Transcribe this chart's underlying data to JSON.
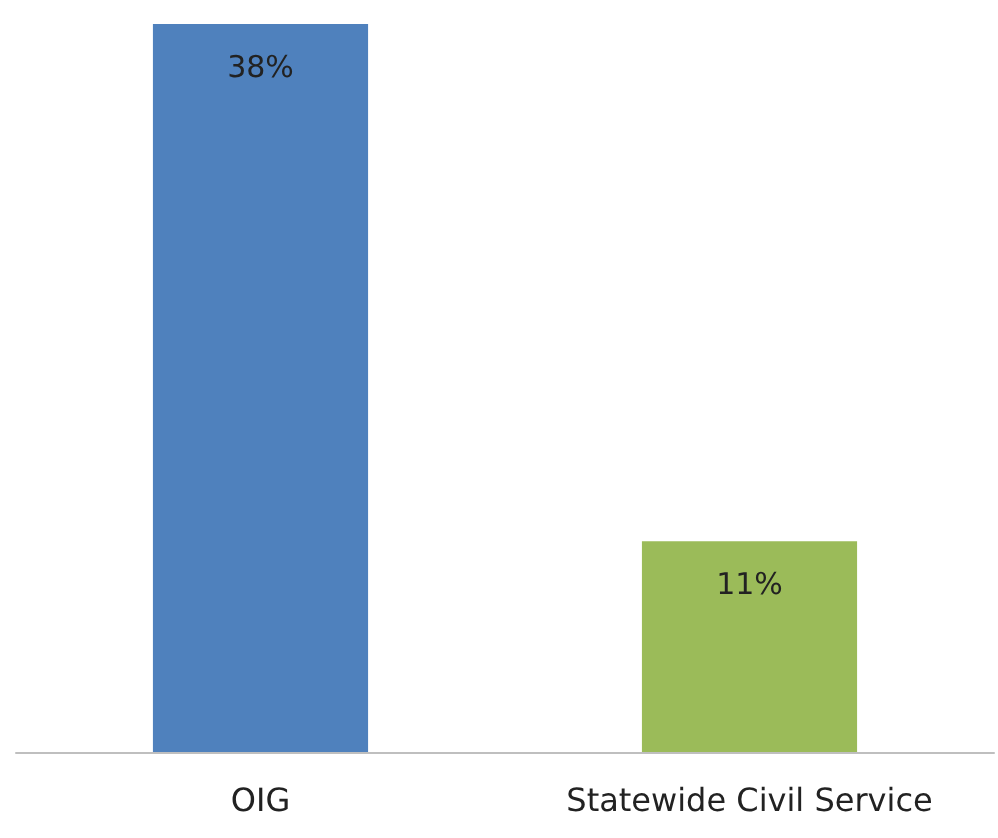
{
  "chart_data": {
    "type": "bar",
    "categories": [
      "OIG",
      "Statewide Civil Service"
    ],
    "values": [
      38,
      11
    ],
    "colors": [
      "#4f81bd",
      "#9bbb59"
    ],
    "value_labels": [
      "38%",
      "11%"
    ]
  }
}
